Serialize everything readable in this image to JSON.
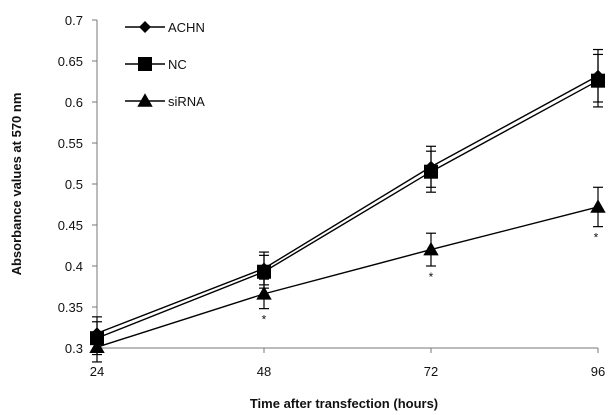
{
  "chart_data": {
    "type": "line",
    "title": "",
    "xlabel": "Time after transfection (hours)",
    "ylabel": "Absorbance values at 570 nm",
    "x": [
      24,
      48,
      72,
      96
    ],
    "x_tick_labels": [
      "24",
      "48",
      "72",
      "96"
    ],
    "ylim": [
      0.3,
      0.7
    ],
    "y_ticks": [
      0.3,
      0.35,
      0.4,
      0.45,
      0.5,
      0.55,
      0.6,
      0.65,
      0.7
    ],
    "y_tick_labels": [
      "0.3",
      "0.35",
      "0.4",
      "0.45",
      "0.5",
      "0.55",
      "0.6",
      "0.65",
      "0.7"
    ],
    "grid": false,
    "legend_position": "top-left",
    "series": [
      {
        "name": "ACHN",
        "marker": "diamond",
        "values": [
          0.318,
          0.397,
          0.521,
          0.632
        ],
        "error": [
          0.02,
          0.02,
          0.025,
          0.032
        ]
      },
      {
        "name": "NC",
        "marker": "square",
        "values": [
          0.312,
          0.393,
          0.515,
          0.626
        ],
        "error": [
          0.02,
          0.02,
          0.025,
          0.032
        ]
      },
      {
        "name": "siRNA",
        "marker": "triangle",
        "values": [
          0.301,
          0.366,
          0.42,
          0.472
        ],
        "error": [
          0.018,
          0.018,
          0.02,
          0.024
        ]
      }
    ],
    "annotations": [
      {
        "x": 48,
        "text": "*"
      },
      {
        "x": 72,
        "text": "*"
      },
      {
        "x": 96,
        "text": "*"
      }
    ]
  }
}
